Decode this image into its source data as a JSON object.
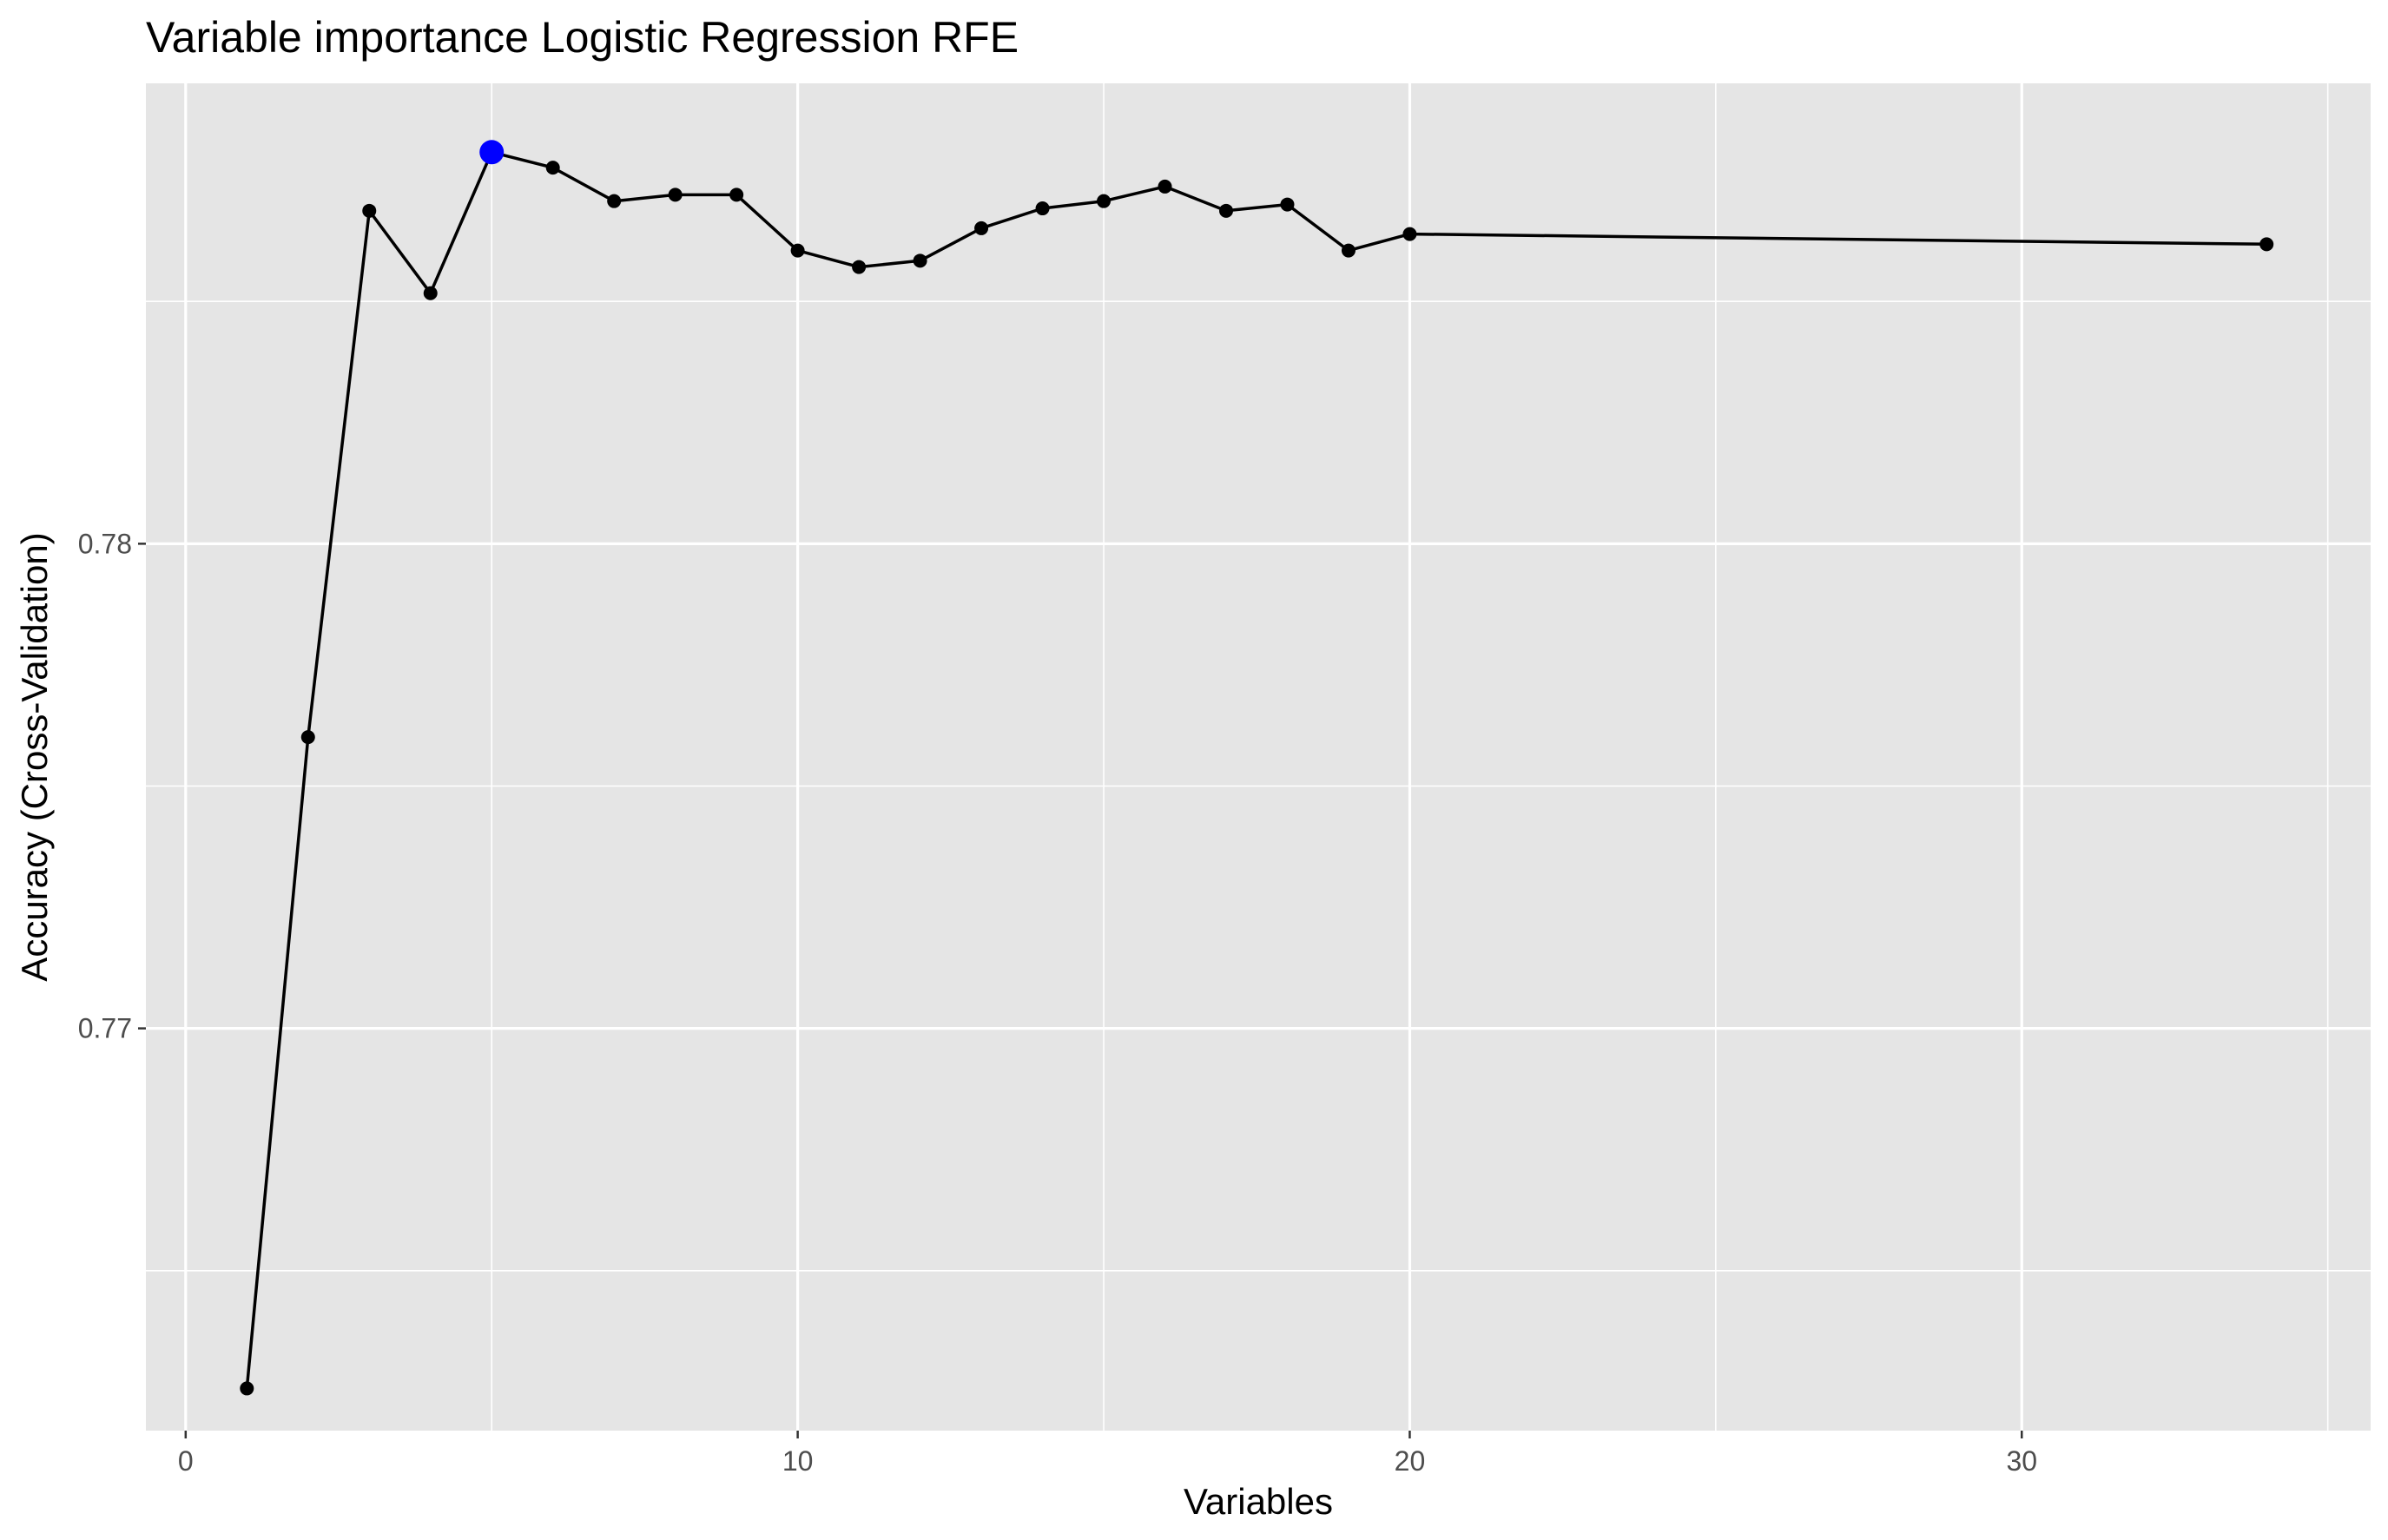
{
  "chart_data": {
    "type": "line",
    "title": "Variable importance Logistic Regression RFE",
    "xlabel": "Variables",
    "ylabel": "Accuracy (Cross-Validation)",
    "xlim": [
      -0.65,
      35.7
    ],
    "ylim": [
      0.7617,
      0.7895
    ],
    "x_ticks": [
      0,
      10,
      20,
      30
    ],
    "x_tick_labels": [
      "0",
      "10",
      "20",
      "30"
    ],
    "x_minor_ticks": [
      5,
      15,
      25,
      35
    ],
    "y_ticks": [
      0.77,
      0.78
    ],
    "y_tick_labels": [
      "0.77",
      "0.78"
    ],
    "y_minor_ticks": [
      0.765,
      0.775,
      0.785
    ],
    "grid": true,
    "background": "#e5e5e5",
    "line_color": "#000000",
    "point_color": "#000000",
    "highlight_color": "#0000ff",
    "series": [
      {
        "x": [
          1,
          2,
          3,
          4,
          5,
          6,
          7,
          8,
          9,
          10,
          11,
          12,
          13,
          14,
          15,
          16,
          17,
          18,
          19,
          20,
          34
        ],
        "y": [
          0.76257,
          0.77601,
          0.78687,
          0.78517,
          0.78808,
          0.78776,
          0.78707,
          0.7872,
          0.7872,
          0.78605,
          0.78571,
          0.78584,
          0.78651,
          0.78692,
          0.78707,
          0.78737,
          0.78687,
          0.787,
          0.78605,
          0.78639,
          0.78618
        ]
      }
    ],
    "highlight": {
      "x": 5,
      "y": 0.78808
    }
  }
}
